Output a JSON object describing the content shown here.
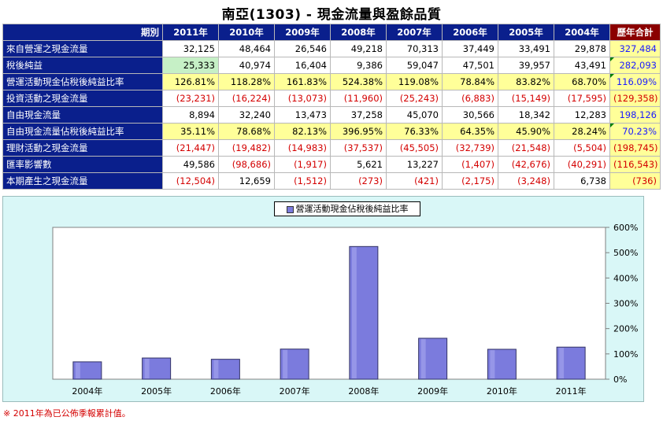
{
  "title": "南亞(1303) -  現金流量與盈餘品質",
  "table": {
    "corner": "期別",
    "years": [
      "2011年",
      "2010年",
      "2009年",
      "2008年",
      "2007年",
      "2006年",
      "2005年",
      "2004年"
    ],
    "total_label": "歷年合計",
    "rows": [
      {
        "label": "來自營運之現金流量",
        "values": [
          "32,125",
          "48,464",
          "26,546",
          "49,218",
          "70,313",
          "37,449",
          "33,491",
          "29,878"
        ],
        "total": "327,484"
      },
      {
        "label": "稅後純益",
        "values": [
          "25,333",
          "40,974",
          "16,404",
          "9,386",
          "59,047",
          "47,501",
          "39,957",
          "43,491"
        ],
        "total": "282,093"
      },
      {
        "label": "營運活動現金佔稅後純益比率",
        "values": [
          "126.81%",
          "118.28%",
          "161.83%",
          "524.38%",
          "119.08%",
          "78.84%",
          "83.82%",
          "68.70%"
        ],
        "total": "116.09%"
      },
      {
        "label": "投資活動之現金流量",
        "values": [
          "(23,231)",
          "(16,224)",
          "(13,073)",
          "(11,960)",
          "(25,243)",
          "(6,883)",
          "(15,149)",
          "(17,595)"
        ],
        "total": "(129,358)"
      },
      {
        "label": "自由現金流量",
        "values": [
          "8,894",
          "32,240",
          "13,473",
          "37,258",
          "45,070",
          "30,566",
          "18,342",
          "12,283"
        ],
        "total": "198,126"
      },
      {
        "label": "自由現金流量佔稅後純益比率",
        "values": [
          "35.11%",
          "78.68%",
          "82.13%",
          "396.95%",
          "76.33%",
          "64.35%",
          "45.90%",
          "28.24%"
        ],
        "total": "70.23%"
      },
      {
        "label": "理財活動之現金流量",
        "values": [
          "(21,447)",
          "(19,482)",
          "(14,983)",
          "(37,537)",
          "(45,505)",
          "(32,739)",
          "(21,548)",
          "(5,504)"
        ],
        "total": "(198,745)"
      },
      {
        "label": "匯率影響數",
        "values": [
          "49,586",
          "(98,686)",
          "(1,917)",
          "5,621",
          "13,227",
          "(1,407)",
          "(42,676)",
          "(40,291)"
        ],
        "total": "(116,543)"
      },
      {
        "label": "本期產生之現金流量",
        "values": [
          "(12,504)",
          "12,659",
          "(1,512)",
          "(273)",
          "(421)",
          "(2,175)",
          "(3,248)",
          "6,738"
        ],
        "total": "(736)"
      }
    ]
  },
  "chart_data": {
    "type": "bar",
    "categories": [
      "2004年",
      "2005年",
      "2006年",
      "2007年",
      "2008年",
      "2009年",
      "2010年",
      "2011年"
    ],
    "series": [
      {
        "name": "營運活動現金佔稅後純益比率",
        "values": [
          68.7,
          83.82,
          78.84,
          119.08,
          524.38,
          161.83,
          118.28,
          126.81
        ]
      }
    ],
    "ylim": [
      0,
      600
    ],
    "yticks": [
      "0%",
      "100%",
      "200%",
      "300%",
      "400%",
      "500%",
      "600%"
    ],
    "legend_position": "top-center",
    "grid": false,
    "bar_color": "#7b7bdd"
  },
  "colors": {
    "header": "#0a1f8c",
    "total_header": "#8b0000",
    "highlight_row": "#ffff99",
    "negative": "#d40000",
    "total_text": "#1a1aff"
  },
  "footnote": "※ 2011年為已公佈季報累計值。"
}
